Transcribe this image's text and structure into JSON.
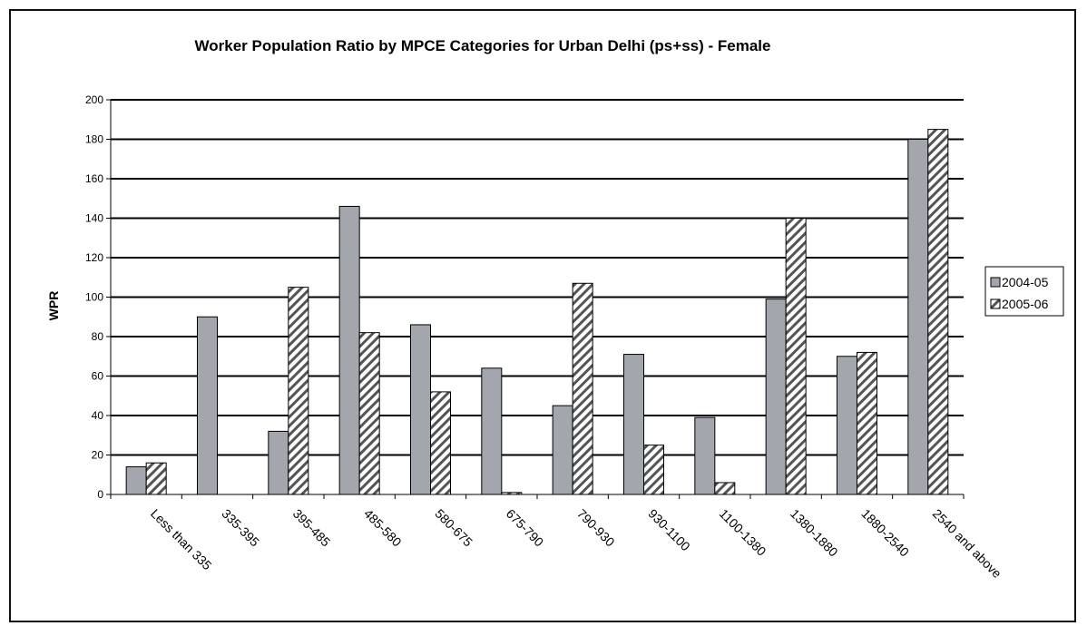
{
  "chart_data": {
    "type": "bar",
    "title": "Worker Population Ratio by MPCE Categories for Urban Delhi (ps+ss) - Female",
    "xlabel": "",
    "ylabel": "WPR",
    "ylim": [
      0,
      200
    ],
    "yticks": [
      "0",
      "20",
      "40",
      "60",
      "80",
      "100",
      "120",
      "140",
      "160",
      "180",
      "200"
    ],
    "grid": "horizontal",
    "legend_position": "right",
    "categories": [
      "Less than 335",
      "335-395",
      "395-485",
      "485-580",
      "580-675",
      "675-790",
      "790-930",
      "930-1100",
      "1100-1380",
      "1380-1880",
      "1880-2540",
      "2540 and above"
    ],
    "series": [
      {
        "name": "2004-05",
        "style": "solid-gray",
        "color": "#a3a7ad",
        "values": [
          14,
          90,
          32,
          146,
          86,
          64,
          45,
          71,
          39,
          99,
          70,
          180
        ]
      },
      {
        "name": "2005-06",
        "style": "diagonal-hatch",
        "color": "#ffffff",
        "values": [
          16,
          0,
          105,
          82,
          52,
          1,
          107,
          25,
          6,
          140,
          72,
          185
        ]
      }
    ]
  }
}
